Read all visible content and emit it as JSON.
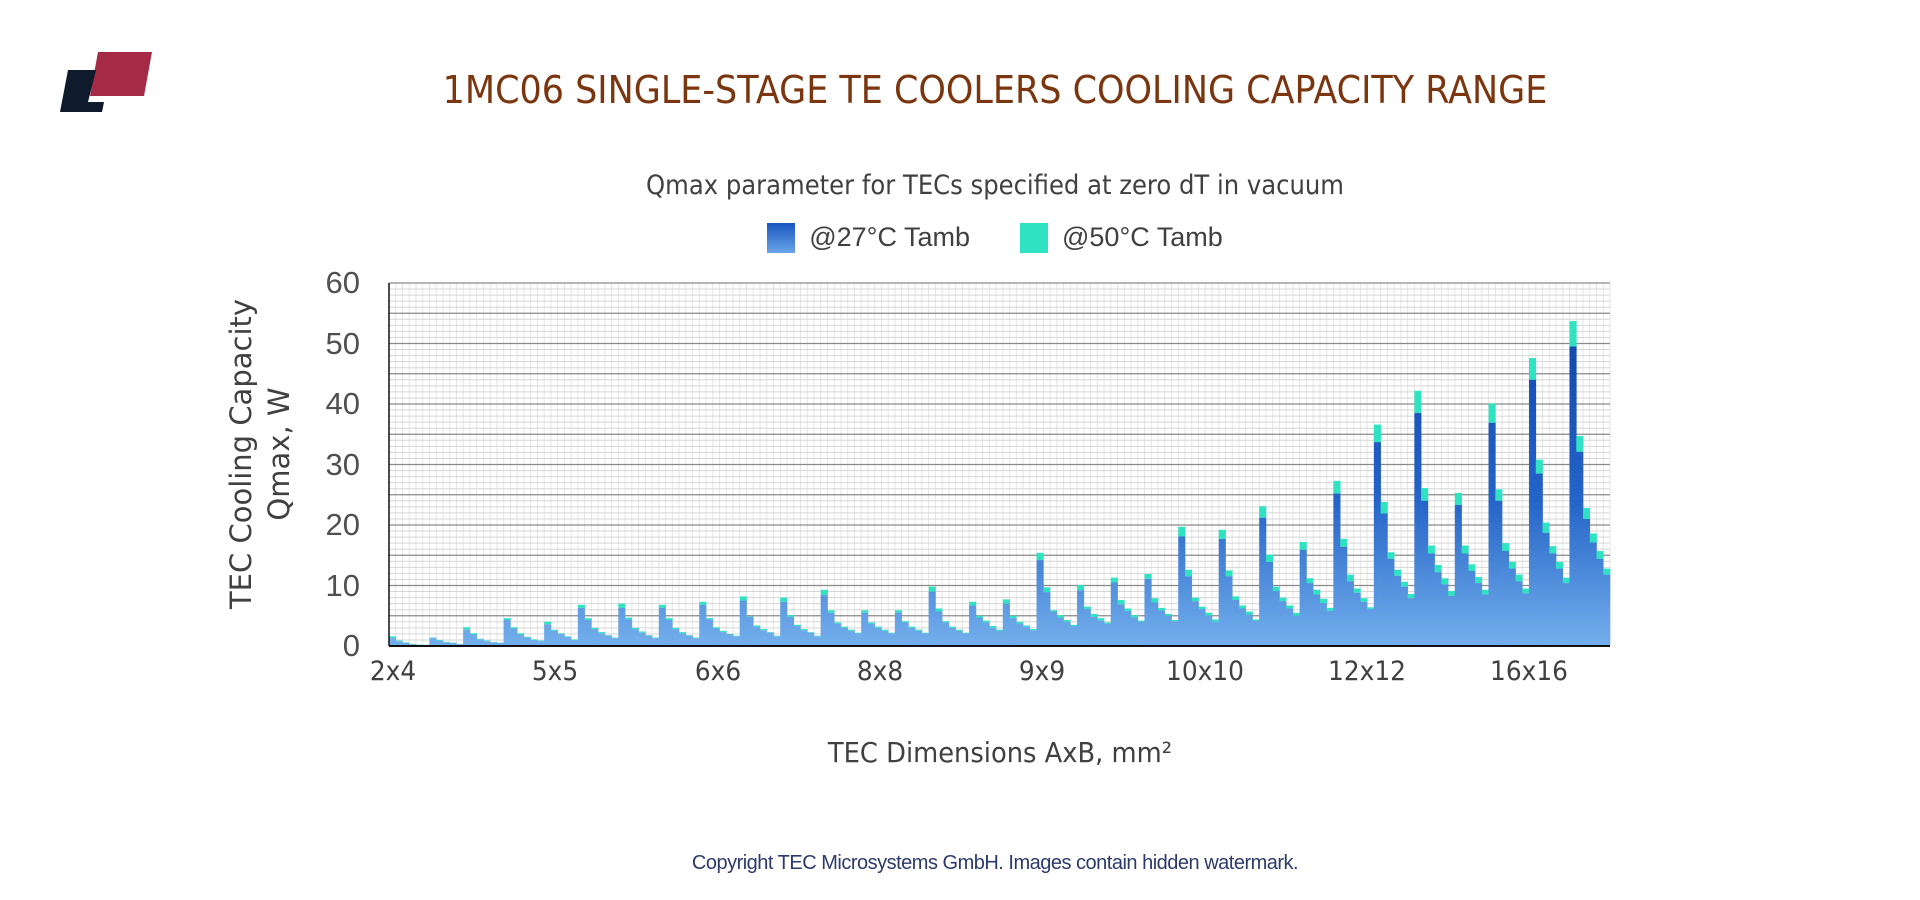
{
  "header": {
    "title": "1MC06 SINGLE-STAGE TE COOLERS COOLING CAPACITY RANGE",
    "logo_icon": "tec-microsystems-logo",
    "logo_colors": [
      "#0f1b2d",
      "#a52a45"
    ]
  },
  "footer": {
    "text": "Copyright TEC Microsystems GmbH. Images contain hidden watermark."
  },
  "chart_data": {
    "type": "bar",
    "stacked": true,
    "title": "Qmax parameter for TECs specified at zero dT in vacuum",
    "xlabel": "TEC Dimensions AxB, mm²",
    "ylabel": [
      "TEC Cooling Capacity",
      "Qmax, W"
    ],
    "ylim": [
      0,
      60
    ],
    "yticks": [
      "0",
      "10",
      "20",
      "30",
      "40",
      "50",
      "60"
    ],
    "grid": true,
    "legend_position": "top-center",
    "legend": [
      {
        "name": "@27°C Tamb",
        "color": "#1a56c0"
      },
      {
        "name": "@50°C Tamb",
        "color": "#2ee2c2"
      }
    ],
    "xticks": [
      "2x4",
      "5x5",
      "6x6",
      "8x8",
      "9x9",
      "10x10",
      "12x12",
      "16x16"
    ],
    "series_note": "each group lists Qmax at 27°C (q27) and at 50°C (q50) per TEC model, W",
    "groups": [
      {
        "q27": [
          1.3,
          0.8,
          0.5,
          0.3,
          0.2,
          0.2
        ],
        "q50": [
          1.6,
          0.9,
          0.6,
          0.35,
          0.25,
          0.2
        ]
      },
      {
        "q27": [
          1.3,
          0.9,
          0.6,
          0.5,
          0.3
        ],
        "q50": [
          1.4,
          1.0,
          0.7,
          0.55,
          0.35
        ]
      },
      {
        "q27": [
          2.7,
          1.9,
          1.1,
          0.8,
          0.6,
          0.5
        ],
        "q50": [
          3.1,
          2.1,
          1.2,
          0.9,
          0.65,
          0.55
        ]
      },
      {
        "q27": [
          4.3,
          2.9,
          1.9,
          1.4,
          1.0,
          0.8
        ],
        "q50": [
          4.6,
          3.1,
          2.1,
          1.5,
          1.1,
          0.9
        ]
      },
      {
        "q27": [
          3.6,
          2.5,
          2.0,
          1.5,
          1.0
        ],
        "q50": [
          4.0,
          2.7,
          2.1,
          1.6,
          1.1
        ]
      },
      {
        "q27": [
          6.3,
          4.3,
          2.8,
          2.1,
          1.7,
          1.3
        ],
        "q50": [
          6.8,
          4.6,
          3.0,
          2.3,
          1.8,
          1.4
        ]
      },
      {
        "q27": [
          6.3,
          4.4,
          2.8,
          2.2,
          1.7,
          1.3
        ],
        "q50": [
          7.0,
          4.7,
          3.0,
          2.4,
          1.8,
          1.4
        ]
      },
      {
        "q27": [
          6.3,
          4.3,
          2.8,
          2.1,
          1.7,
          1.3
        ],
        "q50": [
          6.8,
          4.6,
          3.0,
          2.3,
          1.8,
          1.4
        ]
      },
      {
        "q27": [
          6.8,
          4.4,
          2.9,
          2.3,
          1.9,
          1.6
        ],
        "q50": [
          7.3,
          4.6,
          3.1,
          2.5,
          2.0,
          1.7
        ]
      },
      {
        "q27": [
          7.5,
          4.8,
          3.2,
          2.6,
          2.2,
          1.6
        ],
        "q50": [
          8.2,
          4.9,
          3.4,
          2.8,
          2.3,
          1.7
        ]
      },
      {
        "q27": [
          7.3,
          4.8,
          3.3,
          2.6,
          2.2,
          1.6
        ],
        "q50": [
          8.0,
          5.1,
          3.5,
          2.8,
          2.3,
          1.7
        ]
      },
      {
        "q27": [
          8.4,
          5.5,
          3.7,
          3.0,
          2.5,
          2.1
        ],
        "q50": [
          9.3,
          5.9,
          3.9,
          3.2,
          2.7,
          2.2
        ]
      },
      {
        "q27": [
          5.5,
          3.7,
          3.0,
          2.5,
          2.1
        ],
        "q50": [
          5.9,
          3.9,
          3.2,
          2.7,
          2.2
        ]
      },
      {
        "q27": [
          5.5,
          3.9,
          3.0,
          2.5,
          2.1
        ],
        "q50": [
          5.9,
          4.1,
          3.2,
          2.7,
          2.2
        ]
      },
      {
        "q27": [
          9.0,
          5.7,
          3.9,
          3.0,
          2.5,
          2.1
        ],
        "q50": [
          9.8,
          6.2,
          4.1,
          3.2,
          2.7,
          2.2
        ]
      },
      {
        "q27": [
          6.7,
          4.7,
          3.9,
          3.0,
          2.5
        ],
        "q50": [
          7.3,
          5.0,
          4.2,
          3.3,
          2.7
        ]
      },
      {
        "q27": [
          7.0,
          4.6,
          3.7,
          3.2,
          2.6
        ],
        "q50": [
          7.7,
          5.0,
          4.0,
          3.4,
          2.8
        ]
      },
      {
        "q27": [
          14.2,
          8.9,
          5.7,
          4.7,
          4.0,
          3.3
        ],
        "q50": [
          15.4,
          9.7,
          5.9,
          5.1,
          4.3,
          3.5
        ]
      },
      {
        "q27": [
          9.2,
          6.1,
          4.8,
          4.2,
          3.7
        ],
        "q50": [
          10.1,
          6.5,
          5.3,
          4.6,
          3.9
        ]
      },
      {
        "q27": [
          10.5,
          6.9,
          5.8,
          4.7,
          4.0
        ],
        "q50": [
          11.3,
          7.6,
          6.2,
          5.1,
          4.2
        ]
      },
      {
        "q27": [
          11.1,
          7.2,
          5.9,
          5.0,
          4.1
        ],
        "q50": [
          11.9,
          7.9,
          6.3,
          5.3,
          4.3
        ]
      },
      {
        "q27": [
          18.1,
          11.5,
          7.4,
          6.1,
          5.0,
          4.0
        ],
        "q50": [
          19.7,
          12.6,
          8.0,
          6.5,
          5.5,
          4.4
        ]
      },
      {
        "q27": [
          17.7,
          11.5,
          7.6,
          6.2,
          5.2,
          4.2
        ],
        "q50": [
          19.2,
          12.5,
          8.2,
          6.7,
          5.7,
          4.4
        ]
      },
      {
        "q27": [
          21.2,
          13.9,
          9.1,
          7.4,
          6.2,
          5.0
        ],
        "q50": [
          23.1,
          15.1,
          9.8,
          8.0,
          6.7,
          5.5
        ]
      },
      {
        "q27": [
          15.9,
          10.4,
          8.5,
          7.1,
          5.8
        ],
        "q50": [
          17.2,
          11.2,
          9.3,
          7.8,
          6.3
        ]
      },
      {
        "q27": [
          25.2,
          16.4,
          10.7,
          8.8,
          7.3,
          6.1
        ],
        "q50": [
          27.3,
          17.7,
          11.8,
          9.5,
          7.9,
          6.4
        ]
      },
      {
        "q27": [
          33.7,
          21.9,
          14.4,
          11.6,
          9.8,
          7.9
        ],
        "q50": [
          36.6,
          23.8,
          15.5,
          12.6,
          10.6,
          8.6
        ]
      },
      {
        "q27": [
          38.5,
          24.0,
          15.3,
          12.2,
          10.2,
          8.3
        ],
        "q50": [
          42.2,
          26.1,
          16.6,
          13.4,
          11.2,
          9.1
        ]
      },
      {
        "q27": [
          23.3,
          15.3,
          12.4,
          10.4,
          8.5
        ],
        "q50": [
          25.3,
          16.6,
          13.5,
          11.4,
          9.3
        ]
      },
      {
        "q27": [
          36.9,
          24.0,
          15.7,
          12.8,
          10.7,
          8.7
        ],
        "q50": [
          40.1,
          25.9,
          17.0,
          13.9,
          11.8,
          9.5
        ]
      },
      {
        "q27": [
          44.0,
          28.5,
          18.7,
          15.3,
          12.8,
          10.4
        ],
        "q50": [
          47.6,
          30.8,
          20.4,
          16.5,
          13.9,
          11.3
        ]
      },
      {
        "q27": [
          49.5,
          32.1,
          21.0,
          17.1,
          14.4,
          11.8
        ],
        "q50": [
          53.7,
          34.7,
          22.8,
          18.6,
          15.7,
          12.8
        ]
      }
    ]
  }
}
